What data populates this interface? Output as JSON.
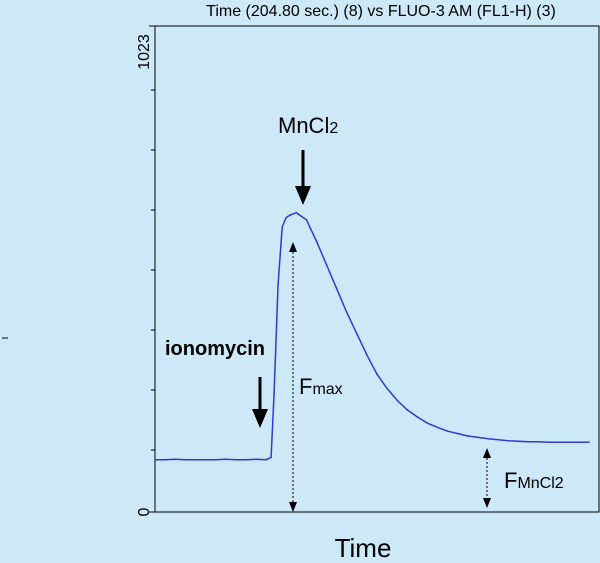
{
  "chart_data": {
    "type": "line",
    "title": "Time (204.80 sec.) (8) vs FLUO-3 AM (FL1-H) (3)",
    "xlabel": "Time",
    "ylabel": "",
    "ylim": [
      0,
      1023
    ],
    "y_ticks": [
      "0",
      "1023"
    ],
    "grid": false,
    "series_color": "#2f3ccf",
    "series": [
      {
        "values": [
          [
            0,
            110
          ],
          [
            10,
            110
          ],
          [
            20,
            111
          ],
          [
            30,
            110
          ],
          [
            40,
            110
          ],
          [
            50,
            110
          ],
          [
            60,
            110
          ],
          [
            70,
            111
          ],
          [
            80,
            110
          ],
          [
            90,
            110
          ],
          [
            100,
            111
          ],
          [
            110,
            110
          ],
          [
            115,
            115
          ],
          [
            118,
            250
          ],
          [
            122,
            480
          ],
          [
            126,
            600
          ],
          [
            130,
            620
          ],
          [
            134,
            625
          ],
          [
            140,
            630
          ],
          [
            150,
            615
          ],
          [
            160,
            570
          ],
          [
            170,
            520
          ],
          [
            180,
            470
          ],
          [
            190,
            420
          ],
          [
            200,
            375
          ],
          [
            210,
            330
          ],
          [
            220,
            290
          ],
          [
            230,
            260
          ],
          [
            240,
            235
          ],
          [
            250,
            215
          ],
          [
            260,
            200
          ],
          [
            270,
            187
          ],
          [
            280,
            178
          ],
          [
            290,
            170
          ],
          [
            300,
            165
          ],
          [
            310,
            160
          ],
          [
            320,
            157
          ],
          [
            330,
            154
          ],
          [
            340,
            152
          ],
          [
            350,
            150
          ],
          [
            360,
            149
          ],
          [
            370,
            148
          ],
          [
            380,
            148
          ],
          [
            390,
            147
          ],
          [
            400,
            147
          ],
          [
            410,
            147
          ],
          [
            420,
            147
          ],
          [
            430,
            147
          ]
        ]
      }
    ],
    "annotations": {
      "ionomycin": "ionomycin",
      "mncl2_main": "MnCl",
      "mncl2_sub": "2",
      "fmax_main": "F",
      "fmax_sub": "max",
      "fmncl2_main": "F",
      "fmncl2_sub": "MnCl2"
    }
  }
}
